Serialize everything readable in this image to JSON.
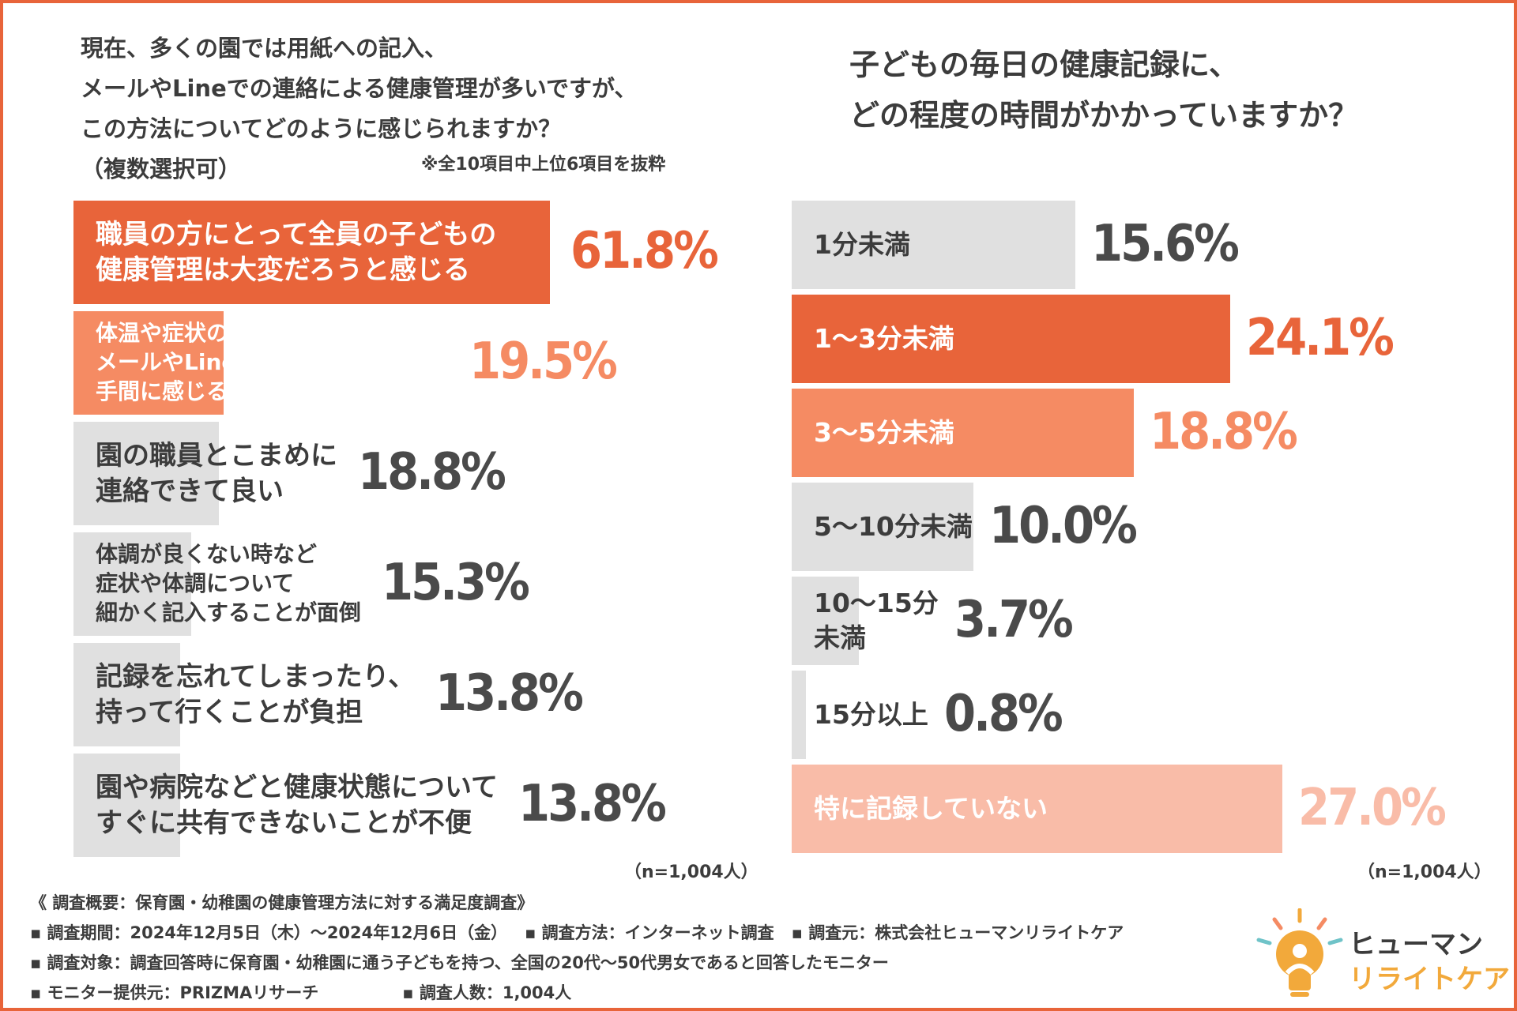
{
  "colors": {
    "dark_orange": "#e8643a",
    "mid_orange": "#f58b63",
    "light_peach": "#f9bca8",
    "gray_bar": "#e0e0e0",
    "text": "#3c3c3c",
    "value_gray": "#4a4a4a",
    "logo_yellow": "#f2a93b",
    "logo_teal": "#6fc3c8"
  },
  "left": {
    "question_lines": [
      "現在、多くの園では用紙への記入、",
      "メールやLineでの連絡による健康管理が多いですが、",
      "この方法についてどのように感じられますか？",
      "（複数選択可）"
    ],
    "note": "※全10項目中上位6項目を抜粋",
    "n_label": "（n=1,004人）"
  },
  "right": {
    "question_lines": [
      "子どもの毎日の健康記録に、",
      "どの程度の時間がかかっていますか？"
    ],
    "n_label": "（n=1,004人）"
  },
  "chart_data": [
    {
      "type": "bar",
      "orientation": "horizontal",
      "title": "現在、多くの園では用紙への記入、メールやLineでの連絡による健康管理が多いですが、この方法についてどのように感じられますか？（複数選択可）",
      "unit": "%",
      "xlim": [
        0,
        63
      ],
      "categories": [
        [
          "職員の方にとって全員の子どもの",
          "健康管理は大変だろうと感じる"
        ],
        [
          "体温や症状の記録を毎日書いたり、",
          "メールやLineでのやり取りが",
          "手間に感じる"
        ],
        [
          "園の職員とこまめに",
          "連絡できて良い"
        ],
        [
          "体調が良くない時など",
          "症状や体調について",
          "細かく記入することが面倒"
        ],
        [
          "記録を忘れてしまったり、",
          "持って行くことが負担"
        ],
        [
          "園や病院などと健康状態について",
          "すぐに共有できないことが不便"
        ]
      ],
      "values": [
        61.8,
        19.5,
        18.8,
        15.3,
        13.8,
        13.8
      ],
      "value_labels": [
        "61.8%",
        "19.5%",
        "18.8%",
        "15.3%",
        "13.8%",
        "13.8%"
      ],
      "bar_colors": [
        "#e8643a",
        "#f58b63",
        "#e0e0e0",
        "#e0e0e0",
        "#e0e0e0",
        "#e0e0e0"
      ],
      "value_colors": [
        "#e8643a",
        "#f58b63",
        "#4a4a4a",
        "#4a4a4a",
        "#4a4a4a",
        "#4a4a4a"
      ],
      "label_colors": [
        "#ffffff",
        "#ffffff",
        "#3c3c3c",
        "#3c3c3c",
        "#3c3c3c",
        "#3c3c3c"
      ]
    },
    {
      "type": "bar",
      "orientation": "horizontal",
      "title": "子どもの毎日の健康記録に、どの程度の時間がかかっていますか？",
      "unit": "%",
      "xlim": [
        0,
        27.5
      ],
      "categories": [
        [
          "1分未満"
        ],
        [
          "1〜3分未満"
        ],
        [
          "3〜5分未満"
        ],
        [
          "5〜10分未満"
        ],
        [
          "10〜15分",
          "未満"
        ],
        [
          "15分以上"
        ],
        [
          "特に記録していない"
        ]
      ],
      "values": [
        15.6,
        24.1,
        18.8,
        10.0,
        3.7,
        0.8,
        27.0
      ],
      "value_labels": [
        "15.6%",
        "24.1%",
        "18.8%",
        "10.0%",
        "3.7%",
        "0.8%",
        "27.0%"
      ],
      "bar_colors": [
        "#e0e0e0",
        "#e8643a",
        "#f58b63",
        "#e0e0e0",
        "#e0e0e0",
        "#e0e0e0",
        "#f9bca8"
      ],
      "value_colors": [
        "#4a4a4a",
        "#e8643a",
        "#f58b63",
        "#4a4a4a",
        "#4a4a4a",
        "#4a4a4a",
        "#f9bca8"
      ],
      "label_colors": [
        "#3c3c3c",
        "#ffffff",
        "#ffffff",
        "#3c3c3c",
        "#3c3c3c",
        "#3c3c3c",
        "#ffffff"
      ]
    }
  ],
  "survey": {
    "title": "《 調査概要：保育園・幼稚園の健康管理方法に対する満足度調査》",
    "period": "▪ 調査期間：2024年12月5日（木）〜2024年12月6日（金）",
    "method": "▪ 調査方法：インターネット調査",
    "source": "▪ 調査元：株式会社ヒューマンリライトケア",
    "target": "▪ 調査対象：調査回答時に保育園・幼稚園に通う子どもを持つ、全国の20代〜50代男女であると回答したモニター",
    "provider": "▪ モニター提供元：PRIZMAリサーチ",
    "count": "▪ 調査人数：1,004人"
  },
  "logo": {
    "line1": "ヒューマン",
    "line2": "リライトケア"
  }
}
